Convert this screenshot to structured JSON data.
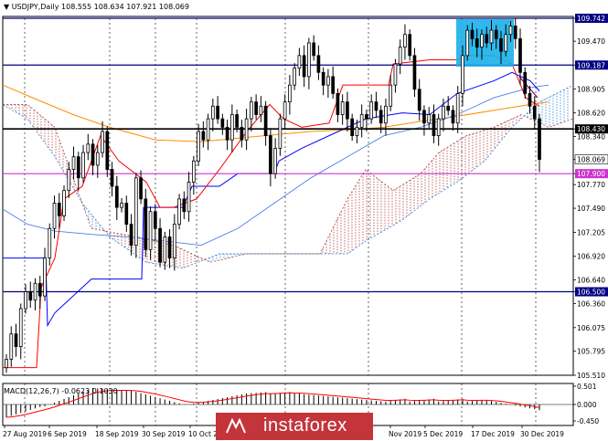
{
  "header": {
    "symbol": "USDJPY,Daily",
    "ohlc": "108.555 108.634 107.921 108.069",
    "arrow": "▼"
  },
  "macd": {
    "label": "MACD(12,26,7) -0.0623 0.1030"
  },
  "watermark": {
    "text": "instaforex"
  },
  "chart_data": {
    "type": "candlestick",
    "symbol": "USDJPY",
    "timeframe": "Daily",
    "price_ticks": [
      "109.742",
      "109.470",
      "109.187",
      "108.905",
      "108.620",
      "108.430",
      "108.340",
      "108.069",
      "107.900",
      "107.770",
      "107.490",
      "107.205",
      "106.920",
      "106.640",
      "106.500",
      "106.360",
      "106.075",
      "105.795",
      "105.510"
    ],
    "date_labels": [
      "27 Aug 2019",
      "6 Sep 2019",
      "18 Sep 2019",
      "30 Sep 2019",
      "10 Oct 2019",
      "Nov 2019",
      "5 Dec 2019",
      "17 Dec 2019",
      "30 Dec 2019"
    ],
    "levels": [
      {
        "value": 109.742,
        "color": "#000080"
      },
      {
        "value": 109.187,
        "color": "#000080"
      },
      {
        "value": 108.43,
        "color": "#000000"
      },
      {
        "value": 107.9,
        "color": "#cc33cc"
      },
      {
        "value": 106.5,
        "color": "#000080"
      }
    ],
    "current_price": 108.069,
    "macd": {
      "macd": -0.0623,
      "signal": 0.103,
      "ticks": [
        "0.501",
        "0.000",
        "-0.450"
      ]
    },
    "colors": {
      "tenkan": "#ff0000",
      "kijun": "#0000ff",
      "ma_orange": "#ff8c00",
      "ma_blue": "#4a7fe8",
      "cloud_bull": "#2a7fd4",
      "cloud_bear": "#b04040",
      "highlight": "#1ab0ea"
    }
  }
}
